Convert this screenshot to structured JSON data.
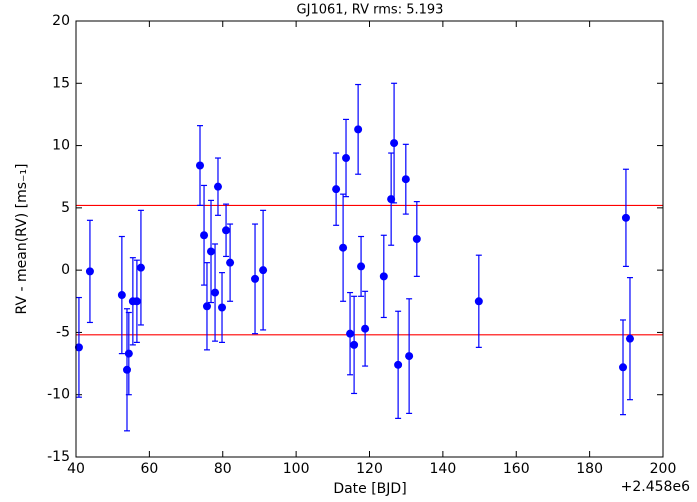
{
  "chart_data": {
    "type": "scatter",
    "title": "GJ1061, RV rms: 5.193",
    "xlabel": "Date [BJD]",
    "ylabel": "RV - mean(RV) [ms₋₁]",
    "x_offset_label": "+2.458e6",
    "xlim": [
      40,
      200
    ],
    "xticks": [
      40,
      60,
      80,
      100,
      120,
      140,
      160,
      180,
      200
    ],
    "ylim": [
      -15,
      20
    ],
    "yticks": [
      -15,
      -10,
      -5,
      0,
      5,
      10,
      15,
      20
    ],
    "hlines": [
      5.193,
      -5.193
    ],
    "hline_color": "#ff0000",
    "series": [
      {
        "color": "#0000ff",
        "x": [
          40.8,
          43.8,
          52.5,
          53.9,
          54.4,
          55.5,
          56.6,
          57.7,
          73.8,
          74.9,
          75.7,
          76.8,
          77.9,
          78.7,
          79.8,
          80.9,
          82.0,
          88.8,
          91.0,
          110.9,
          112.8,
          113.6,
          114.7,
          115.8,
          116.9,
          117.7,
          118.8,
          123.9,
          125.9,
          126.7,
          127.8,
          129.9,
          130.8,
          132.9,
          149.8,
          189.1,
          189.9,
          191.0
        ],
        "values": [
          -6.2,
          -0.1,
          -2.0,
          -8.0,
          -6.7,
          -2.5,
          -2.5,
          0.2,
          8.4,
          2.8,
          -2.9,
          1.5,
          -1.8,
          6.7,
          -3.0,
          3.2,
          0.6,
          -0.7,
          0.0,
          6.5,
          1.8,
          9.0,
          -5.1,
          -6.0,
          11.3,
          0.3,
          -4.7,
          -0.5,
          5.7,
          10.2,
          -7.6,
          7.3,
          -6.9,
          2.5,
          -2.5,
          -7.8,
          4.2,
          -5.5
        ],
        "errors": [
          4.0,
          4.1,
          4.7,
          4.9,
          3.3,
          3.5,
          3.3,
          4.6,
          3.2,
          4.0,
          3.5,
          4.1,
          3.9,
          2.3,
          2.8,
          2.1,
          3.1,
          4.4,
          4.8,
          2.9,
          4.3,
          3.1,
          3.3,
          3.9,
          3.6,
          2.4,
          3.0,
          3.3,
          3.7,
          4.8,
          4.3,
          2.8,
          4.6,
          3.0,
          3.7,
          3.8,
          3.9,
          4.9
        ]
      }
    ]
  }
}
